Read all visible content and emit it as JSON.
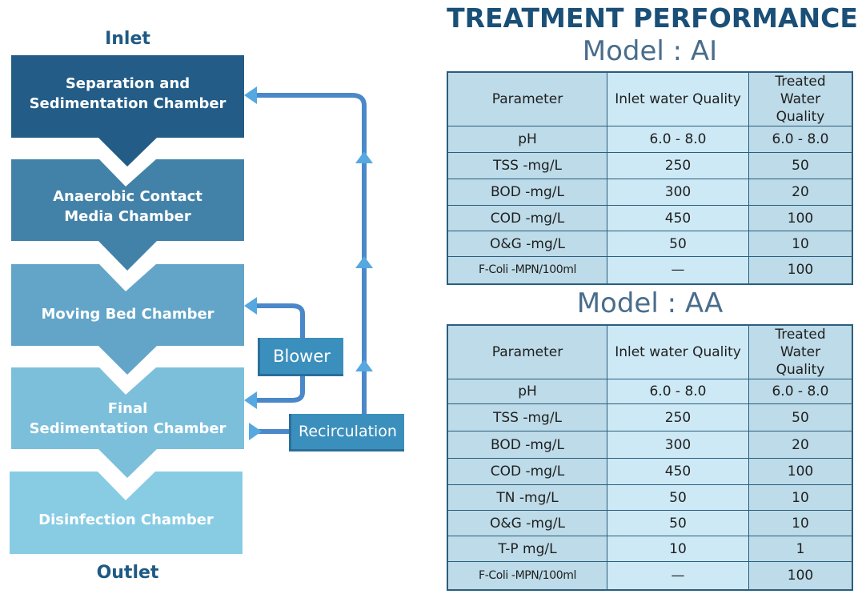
{
  "diagram": {
    "inlet_label": "Inlet",
    "outlet_label": "Outlet",
    "chambers": [
      {
        "line1": "Separation and",
        "line2": "Sedimentation Chamber",
        "color": "#225c87"
      },
      {
        "line1": "Anaerobic Contact",
        "line2": "Media Chamber",
        "color": "#4382a8"
      },
      {
        "line1": "Moving Bed Chamber",
        "line2": "",
        "color": "#62a5c8"
      },
      {
        "line1": "Final",
        "line2": "Sedimentation Chamber",
        "color": "#7bbfdb"
      },
      {
        "line1": "Disinfection Chamber",
        "line2": "",
        "color": "#88cce4"
      }
    ],
    "blower_label": "Blower",
    "recirculation_label": "Recirculation",
    "pipe_color": "#4a88c9",
    "arrow_color": "#56a8e0"
  },
  "performance": {
    "title": "TREATMENT PERFORMANCE",
    "tables": [
      {
        "model": "Model : AI",
        "headers": [
          "Parameter",
          "Inlet water Quality",
          "Treated Water Quality"
        ],
        "rows": [
          [
            "pH",
            "6.0 - 8.0",
            "6.0 - 8.0"
          ],
          [
            "TSS -mg/L",
            "250",
            "50"
          ],
          [
            "BOD -mg/L",
            "300",
            "20"
          ],
          [
            "COD -mg/L",
            "450",
            "100"
          ],
          [
            "O&G -mg/L",
            "50",
            "10"
          ],
          [
            "F-Coli -MPN/100ml",
            "—",
            "100"
          ]
        ]
      },
      {
        "model": "Model : AA",
        "headers": [
          "Parameter",
          "Inlet water Quality",
          "Treated Water Quality"
        ],
        "rows": [
          [
            "pH",
            "6.0 - 8.0",
            "6.0 - 8.0"
          ],
          [
            "TSS -mg/L",
            "250",
            "50"
          ],
          [
            "BOD -mg/L",
            "300",
            "20"
          ],
          [
            "COD -mg/L",
            "450",
            "100"
          ],
          [
            "TN -mg/L",
            "50",
            "10"
          ],
          [
            "O&G -mg/L",
            "50",
            "10"
          ],
          [
            "T-P mg/L",
            "10",
            "1"
          ],
          [
            "F-Coli -MPN/100ml",
            "—",
            "100"
          ]
        ]
      }
    ]
  }
}
